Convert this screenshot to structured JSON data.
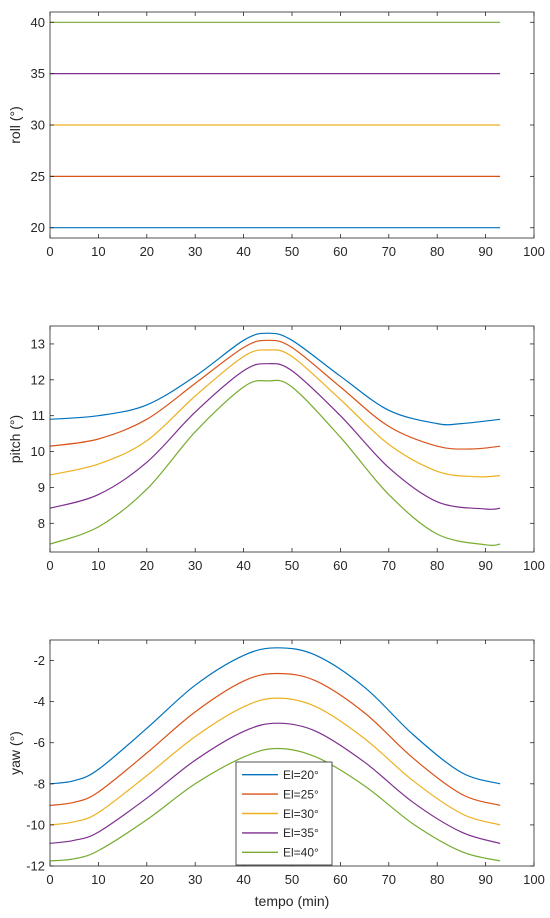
{
  "chart_data": [
    {
      "type": "line",
      "xlabel": "",
      "ylabel": "roll (°)",
      "xlim": [
        0,
        100
      ],
      "ylim": [
        19,
        41
      ],
      "xticks": [
        0,
        10,
        20,
        30,
        40,
        50,
        60,
        70,
        80,
        90,
        100
      ],
      "yticks": [
        20,
        25,
        30,
        35,
        40
      ],
      "grid": false,
      "series": [
        {
          "color": "#0072BD",
          "x": [
            0,
            93
          ],
          "y": [
            20,
            20
          ]
        },
        {
          "color": "#D95319",
          "x": [
            0,
            93
          ],
          "y": [
            25,
            25
          ]
        },
        {
          "color": "#EDB120",
          "x": [
            0,
            93
          ],
          "y": [
            30,
            30
          ]
        },
        {
          "color": "#7E2F8E",
          "x": [
            0,
            93
          ],
          "y": [
            35,
            35
          ]
        },
        {
          "color": "#77AC30",
          "x": [
            0,
            93
          ],
          "y": [
            40,
            40
          ]
        }
      ]
    },
    {
      "type": "line",
      "xlabel": "",
      "ylabel": "pitch (°)",
      "xlim": [
        0,
        100
      ],
      "ylim": [
        7.2,
        13.5
      ],
      "xticks": [
        0,
        10,
        20,
        30,
        40,
        50,
        60,
        70,
        80,
        90,
        100
      ],
      "yticks": [
        8,
        9,
        10,
        11,
        12,
        13
      ],
      "grid": false,
      "series": [
        {
          "color": "#0072BD",
          "x": [
            0,
            10,
            20,
            30,
            40,
            45,
            50,
            60,
            70,
            80,
            85,
            93
          ],
          "y": [
            10.9,
            11.0,
            11.3,
            12.1,
            13.1,
            13.3,
            13.1,
            12.1,
            11.15,
            10.78,
            10.78,
            10.9
          ]
        },
        {
          "color": "#D95319",
          "x": [
            0,
            10,
            20,
            30,
            40,
            45,
            50,
            60,
            70,
            80,
            87,
            93
          ],
          "y": [
            10.15,
            10.35,
            10.9,
            11.9,
            12.9,
            13.1,
            12.9,
            11.8,
            10.7,
            10.15,
            10.07,
            10.15
          ]
        },
        {
          "color": "#EDB120",
          "x": [
            0,
            10,
            20,
            30,
            40,
            45,
            50,
            60,
            70,
            80,
            88,
            93
          ],
          "y": [
            9.35,
            9.65,
            10.3,
            11.55,
            12.65,
            12.83,
            12.65,
            11.45,
            10.2,
            9.45,
            9.3,
            9.33
          ]
        },
        {
          "color": "#7E2F8E",
          "x": [
            0,
            10,
            20,
            30,
            40,
            45,
            50,
            60,
            70,
            80,
            90,
            93
          ],
          "y": [
            8.42,
            8.8,
            9.7,
            11.1,
            12.25,
            12.45,
            12.25,
            11.0,
            9.55,
            8.6,
            8.4,
            8.42
          ]
        },
        {
          "color": "#77AC30",
          "x": [
            0,
            10,
            20,
            30,
            40,
            45,
            50,
            60,
            70,
            80,
            90,
            93
          ],
          "y": [
            7.42,
            7.9,
            8.95,
            10.55,
            11.8,
            11.97,
            11.8,
            10.4,
            8.8,
            7.7,
            7.4,
            7.42
          ]
        }
      ]
    },
    {
      "type": "line",
      "xlabel": "tempo (min)",
      "ylabel": "yaw (°)",
      "xlim": [
        0,
        100
      ],
      "ylim": [
        -12,
        -1
      ],
      "xticks": [
        0,
        10,
        20,
        30,
        40,
        50,
        60,
        70,
        80,
        90,
        100
      ],
      "yticks": [
        -12,
        -10,
        -8,
        -6,
        -4,
        -2
      ],
      "grid": false,
      "legend_placement": "bottom-center",
      "series": [
        {
          "name": "El=20°",
          "color": "#0072BD",
          "x": [
            0,
            5,
            10,
            20,
            30,
            40,
            47,
            55,
            65,
            75,
            85,
            93
          ],
          "y": [
            -8.0,
            -7.85,
            -7.3,
            -5.3,
            -3.2,
            -1.75,
            -1.38,
            -1.75,
            -3.3,
            -5.6,
            -7.45,
            -8.0
          ]
        },
        {
          "name": "El=25°",
          "color": "#D95319",
          "x": [
            0,
            5,
            10,
            20,
            30,
            40,
            47,
            55,
            65,
            75,
            85,
            93
          ],
          "y": [
            -9.05,
            -8.9,
            -8.4,
            -6.5,
            -4.5,
            -3.0,
            -2.63,
            -3.0,
            -4.55,
            -6.75,
            -8.5,
            -9.05
          ]
        },
        {
          "name": "El=30°",
          "color": "#EDB120",
          "x": [
            0,
            5,
            10,
            20,
            30,
            40,
            47,
            55,
            65,
            75,
            85,
            93
          ],
          "y": [
            -10.0,
            -9.85,
            -9.4,
            -7.6,
            -5.7,
            -4.25,
            -3.83,
            -4.25,
            -5.8,
            -7.85,
            -9.45,
            -10.0
          ]
        },
        {
          "name": "El=35°",
          "color": "#7E2F8E",
          "x": [
            0,
            5,
            10,
            20,
            30,
            40,
            47,
            55,
            65,
            75,
            85,
            93
          ],
          "y": [
            -10.9,
            -10.75,
            -10.35,
            -8.7,
            -6.85,
            -5.45,
            -5.05,
            -5.45,
            -6.95,
            -8.9,
            -10.35,
            -10.9
          ]
        },
        {
          "name": "El=40°",
          "color": "#77AC30",
          "x": [
            0,
            5,
            10,
            20,
            30,
            40,
            47,
            55,
            65,
            75,
            85,
            93
          ],
          "y": [
            -11.75,
            -11.65,
            -11.25,
            -9.75,
            -8.0,
            -6.7,
            -6.28,
            -6.7,
            -8.1,
            -9.95,
            -11.3,
            -11.75
          ]
        }
      ]
    }
  ]
}
